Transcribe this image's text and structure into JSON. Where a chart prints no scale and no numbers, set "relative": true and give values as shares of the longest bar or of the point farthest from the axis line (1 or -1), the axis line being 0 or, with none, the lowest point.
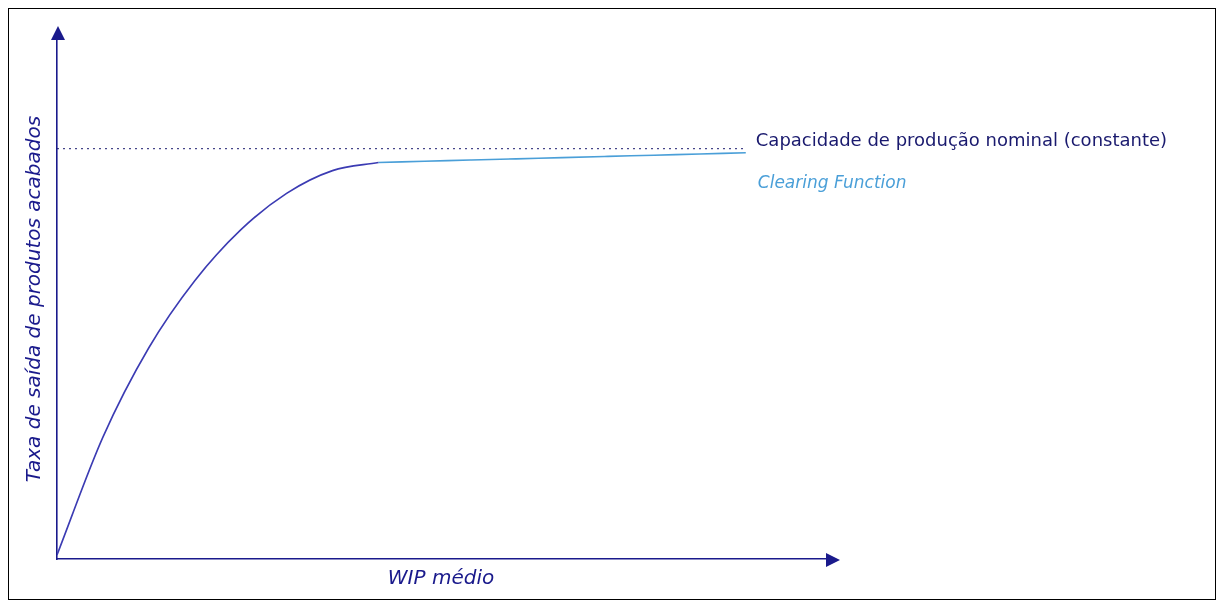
{
  "chart_data": {
    "type": "line",
    "relative": true,
    "xlabel": "WIP médio",
    "ylabel": "Taxa de saída de produtos acabados",
    "categories": [
      null,
      null,
      null,
      null,
      null,
      null,
      null,
      null,
      null,
      null,
      null,
      null,
      null,
      null,
      null,
      null
    ],
    "series": [
      {
        "color": "#3b3bb3",
        "values": [
          0.01,
          0.3,
          0.52,
          0.685,
          0.81,
          0.9,
          0.956,
          0.976,
          null,
          null,
          null,
          null,
          null,
          null,
          null,
          null
        ]
      },
      {
        "name": "Clearing Function",
        "color": "#4a9fd8",
        "values": [
          null,
          null,
          null,
          null,
          null,
          null,
          null,
          0.976,
          0.979,
          0.982,
          0.985,
          0.988,
          0.991,
          0.994,
          0.997,
          1.0
        ]
      }
    ],
    "ref_lines": [
      {
        "axis": "y",
        "value": 1.01,
        "label": "Capacidade de produção nominal (constante)",
        "color": "#1a1a6e",
        "line_style": "dotted"
      }
    ],
    "legend": false,
    "grid": false,
    "marker": "none",
    "line_style": "solid"
  }
}
